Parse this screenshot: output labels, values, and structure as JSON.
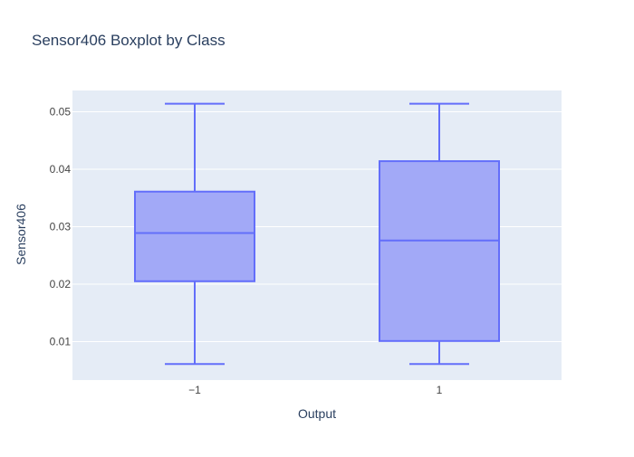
{
  "chart_data": {
    "type": "box",
    "title": "Sensor406 Boxplot by Class",
    "xlabel": "Output",
    "ylabel": "Sensor406",
    "categories": [
      "−1",
      "1"
    ],
    "boxes": [
      {
        "category": "−1",
        "min": 0.0061,
        "q1": 0.0205,
        "median": 0.0289,
        "q3": 0.0361,
        "max": 0.0514
      },
      {
        "category": "1",
        "min": 0.0061,
        "q1": 0.0101,
        "median": 0.0276,
        "q3": 0.0414,
        "max": 0.0514
      }
    ],
    "ylim": [
      0.0033,
      0.0537
    ],
    "yticks": [
      0.01,
      0.02,
      0.03,
      0.04,
      0.05
    ],
    "ytick_labels": [
      "0.01",
      "0.02",
      "0.03",
      "0.04",
      "0.05"
    ],
    "grid": true,
    "colors": {
      "plot_background": "#e5ecf6",
      "box_line": "#636efa",
      "box_fill": "#a2a9f7",
      "grid": "#ffffff",
      "text": "#2a3f5f",
      "tick_text": "#444444"
    }
  }
}
